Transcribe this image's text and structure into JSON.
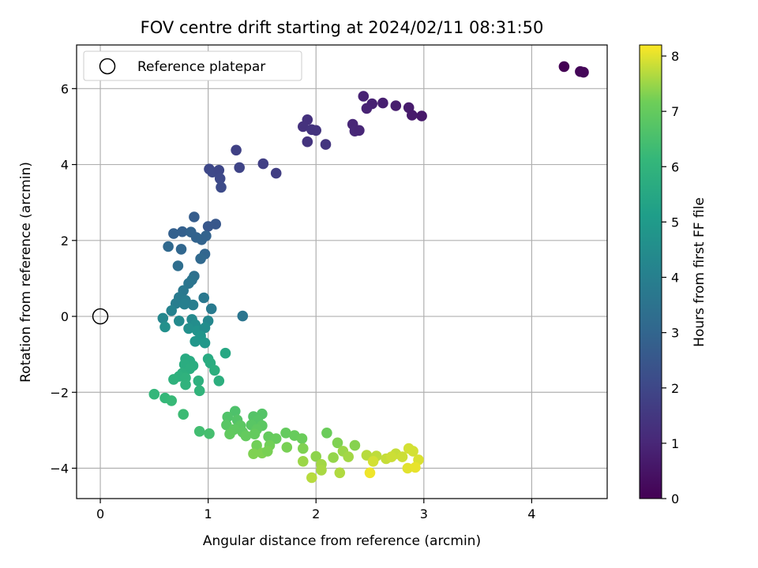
{
  "chart_data": {
    "type": "scatter",
    "title": "FOV centre drift starting at 2024/02/11 08:31:50",
    "xlabel": "Angular distance from reference (arcmin)",
    "ylabel": "Rotation from reference (arcmin)",
    "xlim": [
      -0.22,
      4.7
    ],
    "ylim": [
      -4.8,
      7.15
    ],
    "xticks": [
      0,
      1,
      2,
      3,
      4
    ],
    "yticks": [
      -4,
      -2,
      0,
      2,
      4,
      6
    ],
    "grid": true,
    "legend": {
      "placement": "top-left",
      "entries": [
        "Reference platepar"
      ]
    },
    "reference_point": {
      "x": 0,
      "y": 0,
      "marker": "open-circle"
    },
    "colorbar": {
      "label": "Hours from first FF file",
      "range": [
        0,
        8.2
      ],
      "ticks": [
        0,
        1,
        2,
        3,
        4,
        5,
        6,
        7,
        8
      ],
      "colormap": "viridis"
    },
    "points": [
      {
        "x": 4.3,
        "y": 6.58,
        "t": 0.0
      },
      {
        "x": 4.45,
        "y": 6.45,
        "t": 0.1
      },
      {
        "x": 4.48,
        "y": 6.43,
        "t": 0.15
      },
      {
        "x": 2.44,
        "y": 5.8,
        "t": 0.9
      },
      {
        "x": 2.52,
        "y": 5.6,
        "t": 0.85
      },
      {
        "x": 2.62,
        "y": 5.62,
        "t": 0.8
      },
      {
        "x": 2.47,
        "y": 5.48,
        "t": 0.9
      },
      {
        "x": 2.74,
        "y": 5.55,
        "t": 0.75
      },
      {
        "x": 2.86,
        "y": 5.5,
        "t": 0.7
      },
      {
        "x": 2.89,
        "y": 5.3,
        "t": 0.65
      },
      {
        "x": 2.98,
        "y": 5.28,
        "t": 0.6
      },
      {
        "x": 2.34,
        "y": 5.06,
        "t": 1.0
      },
      {
        "x": 2.36,
        "y": 4.88,
        "t": 1.05
      },
      {
        "x": 2.4,
        "y": 4.9,
        "t": 1.0
      },
      {
        "x": 1.92,
        "y": 5.18,
        "t": 1.3
      },
      {
        "x": 1.88,
        "y": 5.0,
        "t": 1.35
      },
      {
        "x": 1.96,
        "y": 4.92,
        "t": 1.4
      },
      {
        "x": 2.0,
        "y": 4.9,
        "t": 1.4
      },
      {
        "x": 1.92,
        "y": 4.6,
        "t": 1.4
      },
      {
        "x": 2.09,
        "y": 4.53,
        "t": 1.45
      },
      {
        "x": 1.26,
        "y": 4.38,
        "t": 1.8
      },
      {
        "x": 1.51,
        "y": 4.02,
        "t": 1.75
      },
      {
        "x": 1.29,
        "y": 3.92,
        "t": 1.9
      },
      {
        "x": 1.63,
        "y": 3.77,
        "t": 1.7
      },
      {
        "x": 1.01,
        "y": 3.88,
        "t": 2.0
      },
      {
        "x": 1.04,
        "y": 3.8,
        "t": 2.05
      },
      {
        "x": 1.1,
        "y": 3.85,
        "t": 2.0
      },
      {
        "x": 1.11,
        "y": 3.63,
        "t": 2.05
      },
      {
        "x": 1.12,
        "y": 3.4,
        "t": 2.1
      },
      {
        "x": 0.87,
        "y": 2.62,
        "t": 2.7
      },
      {
        "x": 1.0,
        "y": 2.37,
        "t": 2.5
      },
      {
        "x": 1.07,
        "y": 2.43,
        "t": 2.5
      },
      {
        "x": 0.68,
        "y": 2.18,
        "t": 2.8
      },
      {
        "x": 0.76,
        "y": 2.23,
        "t": 2.8
      },
      {
        "x": 0.84,
        "y": 2.22,
        "t": 2.9
      },
      {
        "x": 0.89,
        "y": 2.08,
        "t": 2.9
      },
      {
        "x": 0.94,
        "y": 2.02,
        "t": 2.95
      },
      {
        "x": 0.98,
        "y": 2.12,
        "t": 2.9
      },
      {
        "x": 0.63,
        "y": 1.84,
        "t": 3.1
      },
      {
        "x": 0.75,
        "y": 1.77,
        "t": 3.05
      },
      {
        "x": 0.97,
        "y": 1.64,
        "t": 3.0
      },
      {
        "x": 0.93,
        "y": 1.52,
        "t": 3.1
      },
      {
        "x": 0.72,
        "y": 1.33,
        "t": 3.3
      },
      {
        "x": 0.87,
        "y": 1.06,
        "t": 3.4
      },
      {
        "x": 0.85,
        "y": 0.96,
        "t": 3.5
      },
      {
        "x": 0.82,
        "y": 0.87,
        "t": 3.6
      },
      {
        "x": 0.77,
        "y": 0.68,
        "t": 3.7
      },
      {
        "x": 0.73,
        "y": 0.5,
        "t": 3.8
      },
      {
        "x": 0.79,
        "y": 0.42,
        "t": 3.85
      },
      {
        "x": 0.96,
        "y": 0.49,
        "t": 3.7
      },
      {
        "x": 0.7,
        "y": 0.34,
        "t": 3.9
      },
      {
        "x": 0.78,
        "y": 0.32,
        "t": 4.0
      },
      {
        "x": 0.86,
        "y": 0.3,
        "t": 3.95
      },
      {
        "x": 1.03,
        "y": 0.2,
        "t": 3.8
      },
      {
        "x": 0.66,
        "y": 0.15,
        "t": 4.1
      },
      {
        "x": 1.32,
        "y": 0.01,
        "t": 3.6
      },
      {
        "x": 0.58,
        "y": -0.05,
        "t": 4.3
      },
      {
        "x": 0.73,
        "y": -0.12,
        "t": 4.4
      },
      {
        "x": 0.85,
        "y": -0.08,
        "t": 4.35
      },
      {
        "x": 1.0,
        "y": -0.12,
        "t": 4.3
      },
      {
        "x": 0.88,
        "y": -0.22,
        "t": 4.5
      },
      {
        "x": 0.6,
        "y": -0.28,
        "t": 4.6
      },
      {
        "x": 0.82,
        "y": -0.32,
        "t": 4.6
      },
      {
        "x": 0.9,
        "y": -0.38,
        "t": 4.7
      },
      {
        "x": 0.97,
        "y": -0.3,
        "t": 4.5
      },
      {
        "x": 0.93,
        "y": -0.52,
        "t": 4.8
      },
      {
        "x": 0.88,
        "y": -0.66,
        "t": 4.85
      },
      {
        "x": 0.97,
        "y": -0.7,
        "t": 4.9
      },
      {
        "x": 1.16,
        "y": -0.97,
        "t": 5.5
      },
      {
        "x": 0.79,
        "y": -1.12,
        "t": 5.6
      },
      {
        "x": 0.83,
        "y": -1.18,
        "t": 5.65
      },
      {
        "x": 1.0,
        "y": -1.12,
        "t": 5.6
      },
      {
        "x": 0.78,
        "y": -1.27,
        "t": 5.7
      },
      {
        "x": 0.86,
        "y": -1.3,
        "t": 5.7
      },
      {
        "x": 1.02,
        "y": -1.23,
        "t": 5.7
      },
      {
        "x": 0.83,
        "y": -1.38,
        "t": 5.75
      },
      {
        "x": 1.06,
        "y": -1.42,
        "t": 5.8
      },
      {
        "x": 0.76,
        "y": -1.5,
        "t": 5.8
      },
      {
        "x": 0.73,
        "y": -1.58,
        "t": 5.85
      },
      {
        "x": 0.79,
        "y": -1.62,
        "t": 5.9
      },
      {
        "x": 0.68,
        "y": -1.66,
        "t": 5.9
      },
      {
        "x": 0.91,
        "y": -1.7,
        "t": 5.85
      },
      {
        "x": 1.1,
        "y": -1.7,
        "t": 5.8
      },
      {
        "x": 0.79,
        "y": -1.8,
        "t": 5.95
      },
      {
        "x": 0.92,
        "y": -1.96,
        "t": 6.0
      },
      {
        "x": 0.5,
        "y": -2.05,
        "t": 6.1
      },
      {
        "x": 0.6,
        "y": -2.15,
        "t": 6.15
      },
      {
        "x": 0.66,
        "y": -2.22,
        "t": 6.2
      },
      {
        "x": 0.77,
        "y": -2.58,
        "t": 6.3
      },
      {
        "x": 0.92,
        "y": -3.03,
        "t": 6.4
      },
      {
        "x": 1.01,
        "y": -3.09,
        "t": 6.45
      },
      {
        "x": 1.25,
        "y": -2.5,
        "t": 6.6
      },
      {
        "x": 1.18,
        "y": -2.65,
        "t": 6.65
      },
      {
        "x": 1.27,
        "y": -2.73,
        "t": 6.7
      },
      {
        "x": 1.42,
        "y": -2.64,
        "t": 6.7
      },
      {
        "x": 1.5,
        "y": -2.57,
        "t": 6.7
      },
      {
        "x": 1.46,
        "y": -2.74,
        "t": 6.75
      },
      {
        "x": 1.17,
        "y": -2.86,
        "t": 6.8
      },
      {
        "x": 1.3,
        "y": -2.88,
        "t": 6.85
      },
      {
        "x": 1.4,
        "y": -2.86,
        "t": 6.8
      },
      {
        "x": 1.5,
        "y": -2.88,
        "t": 6.85
      },
      {
        "x": 1.24,
        "y": -2.98,
        "t": 6.9
      },
      {
        "x": 1.32,
        "y": -3.05,
        "t": 6.9
      },
      {
        "x": 1.45,
        "y": -2.98,
        "t": 6.9
      },
      {
        "x": 1.2,
        "y": -3.1,
        "t": 6.95
      },
      {
        "x": 1.35,
        "y": -3.15,
        "t": 7.0
      },
      {
        "x": 1.43,
        "y": -3.1,
        "t": 7.0
      },
      {
        "x": 1.56,
        "y": -3.17,
        "t": 7.0
      },
      {
        "x": 1.63,
        "y": -3.22,
        "t": 7.05
      },
      {
        "x": 1.72,
        "y": -3.07,
        "t": 7.0
      },
      {
        "x": 1.8,
        "y": -3.14,
        "t": 7.05
      },
      {
        "x": 1.87,
        "y": -3.22,
        "t": 7.1
      },
      {
        "x": 2.1,
        "y": -3.07,
        "t": 7.1
      },
      {
        "x": 1.45,
        "y": -3.4,
        "t": 7.2
      },
      {
        "x": 1.57,
        "y": -3.4,
        "t": 7.2
      },
      {
        "x": 1.73,
        "y": -3.45,
        "t": 7.25
      },
      {
        "x": 1.88,
        "y": -3.48,
        "t": 7.3
      },
      {
        "x": 2.2,
        "y": -3.33,
        "t": 7.3
      },
      {
        "x": 2.36,
        "y": -3.4,
        "t": 7.35
      },
      {
        "x": 1.42,
        "y": -3.62,
        "t": 7.3
      },
      {
        "x": 1.5,
        "y": -3.6,
        "t": 7.3
      },
      {
        "x": 1.55,
        "y": -3.55,
        "t": 7.25
      },
      {
        "x": 2.0,
        "y": -3.69,
        "t": 7.4
      },
      {
        "x": 2.16,
        "y": -3.72,
        "t": 7.45
      },
      {
        "x": 2.25,
        "y": -3.55,
        "t": 7.5
      },
      {
        "x": 2.3,
        "y": -3.7,
        "t": 7.55
      },
      {
        "x": 1.88,
        "y": -3.82,
        "t": 7.5
      },
      {
        "x": 2.05,
        "y": -3.9,
        "t": 7.55
      },
      {
        "x": 2.47,
        "y": -3.66,
        "t": 7.7
      },
      {
        "x": 2.56,
        "y": -3.68,
        "t": 7.75
      },
      {
        "x": 2.65,
        "y": -3.75,
        "t": 7.8
      },
      {
        "x": 2.74,
        "y": -3.62,
        "t": 7.8
      },
      {
        "x": 2.8,
        "y": -3.7,
        "t": 7.85
      },
      {
        "x": 2.86,
        "y": -3.48,
        "t": 7.9
      },
      {
        "x": 2.9,
        "y": -3.55,
        "t": 7.9
      },
      {
        "x": 2.95,
        "y": -3.78,
        "t": 7.95
      },
      {
        "x": 2.85,
        "y": -4.0,
        "t": 8.0
      },
      {
        "x": 2.92,
        "y": -3.98,
        "t": 8.05
      },
      {
        "x": 2.5,
        "y": -4.12,
        "t": 8.1
      },
      {
        "x": 2.05,
        "y": -4.05,
        "t": 7.6
      },
      {
        "x": 2.22,
        "y": -4.12,
        "t": 7.65
      },
      {
        "x": 1.96,
        "y": -4.25,
        "t": 7.7
      },
      {
        "x": 2.53,
        "y": -3.82,
        "t": 7.9
      },
      {
        "x": 2.7,
        "y": -3.7,
        "t": 7.85
      }
    ]
  }
}
